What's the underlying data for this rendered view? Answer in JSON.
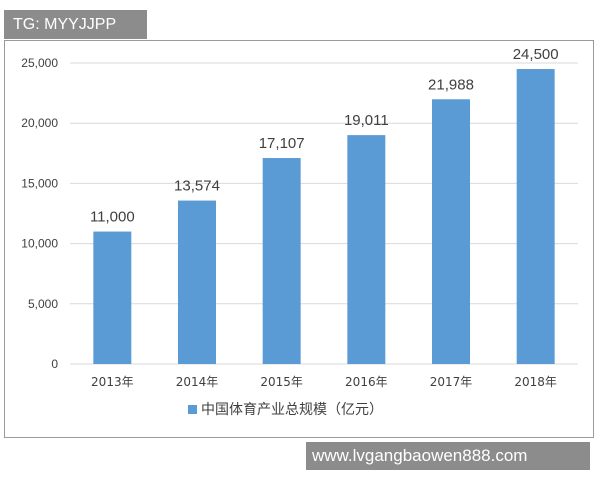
{
  "watermark": {
    "top": "TG: MYYJJPP",
    "bottom": "www.lvgangbaowen888.com"
  },
  "colors": {
    "bar": "#5b9bd5",
    "grid": "#d9d9d9",
    "watermark_bg": "#8c8c8c"
  },
  "chart_data": {
    "type": "bar",
    "title": "",
    "xlabel": "",
    "ylabel": "",
    "categories": [
      "2013年",
      "2014年",
      "2015年",
      "2016年",
      "2017年",
      "2018年"
    ],
    "series": [
      {
        "name": "中国体育产业总规模（亿元）",
        "values": [
          11000,
          13574,
          17107,
          19011,
          21988,
          24500
        ],
        "labels": [
          "11,000",
          "13,574",
          "17,107",
          "19,011",
          "21,988",
          "24,500"
        ]
      }
    ],
    "ylim": [
      0,
      25000
    ],
    "yticks": [
      0,
      5000,
      10000,
      15000,
      20000,
      25000
    ],
    "ytick_labels": [
      "0",
      "5,000",
      "10,000",
      "15,000",
      "20,000",
      "25,000"
    ],
    "grid": true,
    "legend": "bottom"
  }
}
